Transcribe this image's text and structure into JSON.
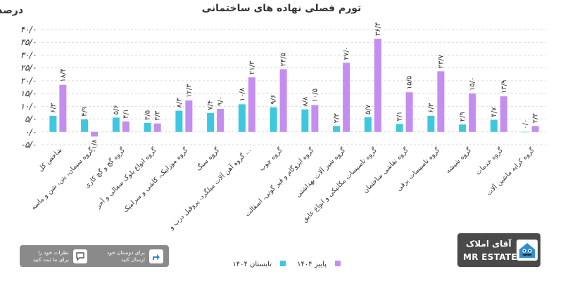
{
  "chart_data": {
    "type": "bar",
    "title": "تورم فصلی نهاده های ساختمانی",
    "unit_label": "درصد",
    "ylim": [
      -5,
      40
    ],
    "y_ticks": [
      "۴۰/۰",
      "۳۵/۰",
      "۳۰/۰",
      "۲۵/۰",
      "۲۰/۰",
      "۱۵/۰",
      "۱۰/۰",
      "۵/۰",
      "۰/۰",
      "-۵/۰"
    ],
    "y_tick_values": [
      40,
      35,
      30,
      25,
      20,
      15,
      10,
      5,
      0,
      -5
    ],
    "grid": true,
    "legend_position": "bottom",
    "categories": [
      "شاخص کل",
      "گروه سیمان، بتن، شن و ماسه",
      "گروه گچ و گچ کاری",
      "گروه انواع بلوک سفالی و آجر",
      "گروه موزاییک، کاشی و سرامیک",
      "گروه سنگ",
      "گروه آهن آلات میلگرد، پروفیل درب و ...",
      "گروه چوب",
      "گروه ایزوگام و قیر گونی، اسفالت",
      "گروه شیر آلات بهداشتی",
      "گروه تاسیسات مکانیکی و انواع عایق",
      "گروه نقاشی ساختمان",
      "گروه تاسیسات برقی",
      "گروه شیشه",
      "گروه خدمات",
      "گروه کرایه ماشین آلات"
    ],
    "series": [
      {
        "name": "تابستان ۱۴۰۴",
        "color": "#3dc8e0",
        "values": [
          6.3,
          4.9,
          5.6,
          3.5,
          8.3,
          7.4,
          10.8,
          9.6,
          8.8,
          2.3,
          5.7,
          3.1,
          6.3,
          2.9,
          4.7,
          0.0
        ],
        "labels": [
          "۶/۳",
          "۴/۹",
          "۵/۶",
          "۳/۵",
          "۸/۳",
          "۷/۴",
          "۱۰/۸",
          "۹/۶",
          "۸/۸",
          "۲/۳",
          "۵/۷",
          "۳/۱",
          "۶/۳",
          "۲/۹",
          "۴/۷",
          "۰/۰"
        ]
      },
      {
        "name": "پاییز ۱۴۰۴",
        "color": "#c48ef0",
        "values": [
          18.4,
          -1.8,
          4.1,
          3.3,
          12.3,
          9.0,
          21.3,
          24.5,
          10.5,
          27.0,
          36.4,
          15.5,
          23.7,
          15.0,
          13.9,
          2.3
        ],
        "labels": [
          "۱۸/۴",
          "-۱/۸",
          "۴/۱",
          "۳/۳",
          "۱۲/۳",
          "۹/۰",
          "۲۱/۳",
          "۲۴/۵",
          "۱۰/۵",
          "۲۷/۰",
          "۳۶/۴",
          "۱۵/۵",
          "۲۳/۷",
          "۱۵/۰",
          "۱۳/۹",
          "۲/۳"
        ]
      }
    ]
  },
  "share": {
    "comment_line1": "نظرات خود را",
    "comment_line2": "برای ما ثبت کنید",
    "send_line1": "برای دوستان خود",
    "send_line2": "ارسال کنید",
    "comment_icon": "chat-bubble-icon",
    "send_icon": "share-arrow-icon"
  },
  "logo": {
    "name_fa": "آقای املاک",
    "name_en": "MR ESTATE",
    "icon": "house-mustache-icon"
  }
}
